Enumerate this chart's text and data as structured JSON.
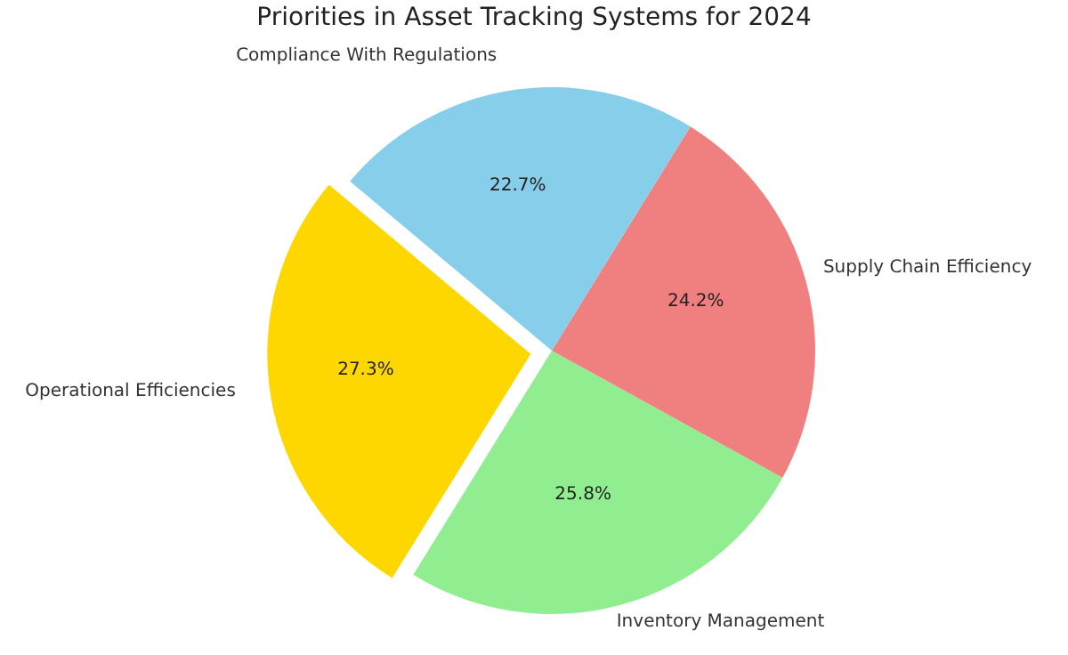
{
  "chart_data": {
    "type": "pie",
    "title": "Priorities in Asset Tracking Systems for 2024",
    "categories": [
      "Operational Efficiencies",
      "Inventory Management",
      "Supply Chain Efficiency",
      "Compliance With Regulations"
    ],
    "values": [
      27.3,
      25.8,
      24.2,
      22.7
    ],
    "value_labels": [
      "27.3%",
      "25.8%",
      "24.2%",
      "22.7%"
    ],
    "colors": [
      "#ffd700",
      "#90ee90",
      "#f08080",
      "#87ceeb"
    ],
    "legend": false
  }
}
